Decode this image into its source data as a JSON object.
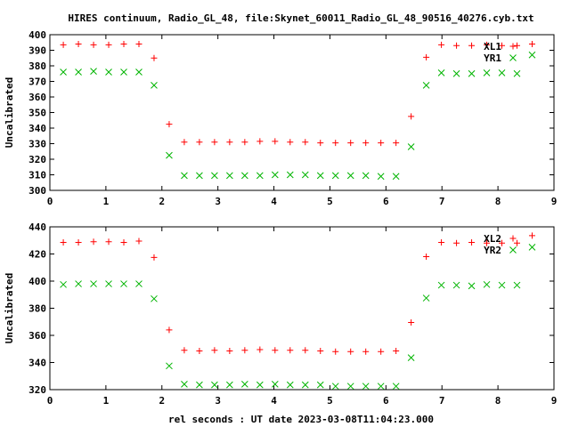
{
  "title": "HIRES continuum, Radio_GL_48, file:Skynet_60011_Radio_GL_48_90516_40276.cyb.txt",
  "xlabel": "rel seconds : UT date 2023-03-08T11:04:23.000",
  "colors": {
    "red": "#ff0000",
    "green": "#00b400"
  },
  "chart_data": [
    {
      "type": "scatter",
      "ylabel": "Uncalibrated",
      "xlim": [
        0,
        9
      ],
      "ylim": [
        300,
        400
      ],
      "xticks": [
        0,
        1,
        2,
        3,
        4,
        5,
        6,
        7,
        8,
        9
      ],
      "yticks": [
        300,
        310,
        320,
        330,
        340,
        350,
        360,
        370,
        380,
        390,
        400
      ],
      "legend_placement": "top-right",
      "x": [
        0.24,
        0.51,
        0.78,
        1.05,
        1.32,
        1.59,
        1.86,
        2.13,
        2.4,
        2.67,
        2.94,
        3.21,
        3.48,
        3.75,
        4.02,
        4.29,
        4.56,
        4.83,
        5.1,
        5.37,
        5.64,
        5.91,
        6.18,
        6.45,
        6.72,
        6.99,
        7.26,
        7.53,
        7.8,
        8.07,
        8.34,
        8.61
      ],
      "series": [
        {
          "name": "XL1",
          "marker": "plus",
          "color": "#ff0000",
          "values": [
            393.5,
            394,
            393.5,
            393.5,
            394,
            394,
            385,
            342.5,
            331,
            331,
            331,
            331,
            331,
            331.5,
            331.5,
            331,
            331,
            330.5,
            330.5,
            330.5,
            330.5,
            330.5,
            330.5,
            347.5,
            385.5,
            393.5,
            393,
            393,
            393.5,
            393,
            393,
            394
          ]
        },
        {
          "name": "YR1",
          "marker": "cross",
          "color": "#00b400",
          "values": [
            376,
            376,
            376.5,
            376,
            376,
            376,
            367.5,
            322.5,
            309.5,
            309.5,
            309.5,
            309.5,
            309.5,
            309.5,
            310,
            310,
            310,
            309.5,
            309.5,
            309.5,
            309.5,
            309,
            309,
            328,
            367.5,
            375.5,
            375,
            375,
            375.5,
            375.5,
            375,
            387
          ]
        }
      ]
    },
    {
      "type": "scatter",
      "ylabel": "Uncalibrated",
      "xlim": [
        0,
        9
      ],
      "ylim": [
        320,
        440
      ],
      "xticks": [
        0,
        1,
        2,
        3,
        4,
        5,
        6,
        7,
        8,
        9
      ],
      "yticks": [
        320,
        340,
        360,
        380,
        400,
        420,
        440
      ],
      "legend_placement": "top-right",
      "x": [
        0.24,
        0.51,
        0.78,
        1.05,
        1.32,
        1.59,
        1.86,
        2.13,
        2.4,
        2.67,
        2.94,
        3.21,
        3.48,
        3.75,
        4.02,
        4.29,
        4.56,
        4.83,
        5.1,
        5.37,
        5.64,
        5.91,
        6.18,
        6.45,
        6.72,
        6.99,
        7.26,
        7.53,
        7.8,
        8.07,
        8.34,
        8.61
      ],
      "series": [
        {
          "name": "XL2",
          "marker": "plus",
          "color": "#ff0000",
          "values": [
            428.5,
            428.5,
            429,
            429,
            428.5,
            429.5,
            417.5,
            364,
            349,
            348.5,
            349,
            348.5,
            349,
            349.5,
            349,
            349,
            349,
            348.5,
            348,
            348,
            348,
            348,
            348.5,
            369.5,
            418,
            428.5,
            428,
            428.5,
            428,
            428,
            428,
            433.5
          ]
        },
        {
          "name": "YR2",
          "marker": "cross",
          "color": "#00b400",
          "values": [
            397.5,
            398,
            398,
            398,
            398,
            398,
            387,
            337.5,
            324,
            323.5,
            323.5,
            323.5,
            324,
            323.5,
            324,
            323.5,
            323.5,
            323.5,
            322.5,
            322.5,
            322.5,
            322.5,
            322.5,
            343.5,
            387.5,
            397,
            397,
            396.5,
            397.5,
            397,
            397,
            425
          ]
        }
      ]
    }
  ]
}
